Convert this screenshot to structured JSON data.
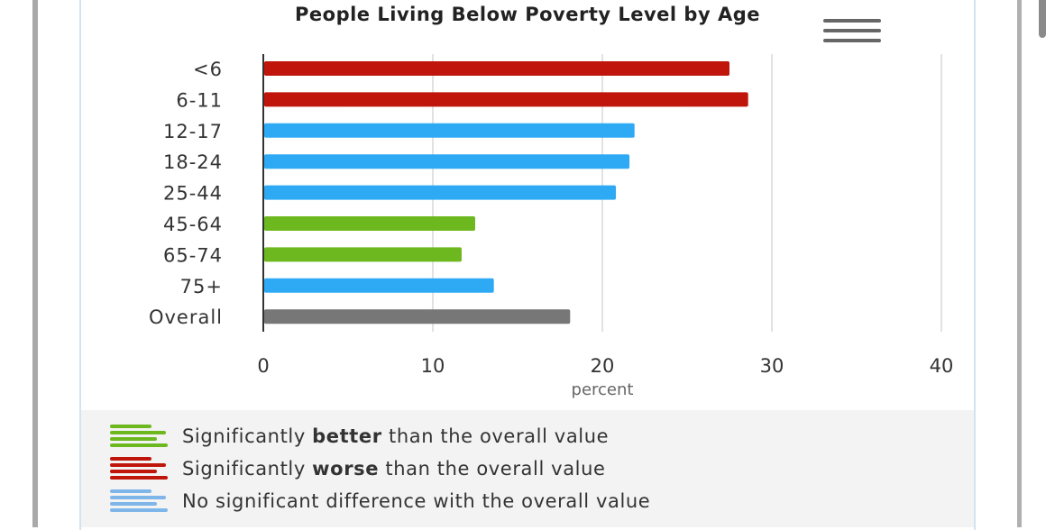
{
  "chart_data": {
    "type": "bar",
    "title": "People Living Below Poverty Level by Age",
    "categories": [
      "<6",
      "6-11",
      "12-17",
      "18-24",
      "25-44",
      "45-64",
      "65-74",
      "75+",
      "Overall"
    ],
    "values": [
      27.5,
      28.6,
      21.9,
      21.6,
      20.8,
      12.5,
      11.7,
      13.6,
      18.1
    ],
    "status": [
      "worse",
      "worse",
      "nodiff",
      "nodiff",
      "nodiff",
      "better",
      "better",
      "nodiff",
      "overall"
    ],
    "xlabel": "percent",
    "ylabel": "",
    "xlim": [
      0,
      40
    ],
    "xticks": [
      "0",
      "10",
      "20",
      "30",
      "40"
    ],
    "grid": true,
    "legend_placement": "bottom",
    "colors": {
      "better": "#6cb81e",
      "worse": "#c0150a",
      "nodiff": "#2eaaf5",
      "overall": "#777777",
      "legend_nodiff": "#7fb6ea"
    }
  },
  "legend": [
    {
      "key": "better",
      "pre": "Significantly ",
      "bold": "better",
      "post": " than the overall value"
    },
    {
      "key": "worse",
      "pre": "Significantly ",
      "bold": "worse",
      "post": " than the overall value"
    },
    {
      "key": "nodiff",
      "pre": "No significant difference with the overall value",
      "bold": "",
      "post": ""
    }
  ]
}
